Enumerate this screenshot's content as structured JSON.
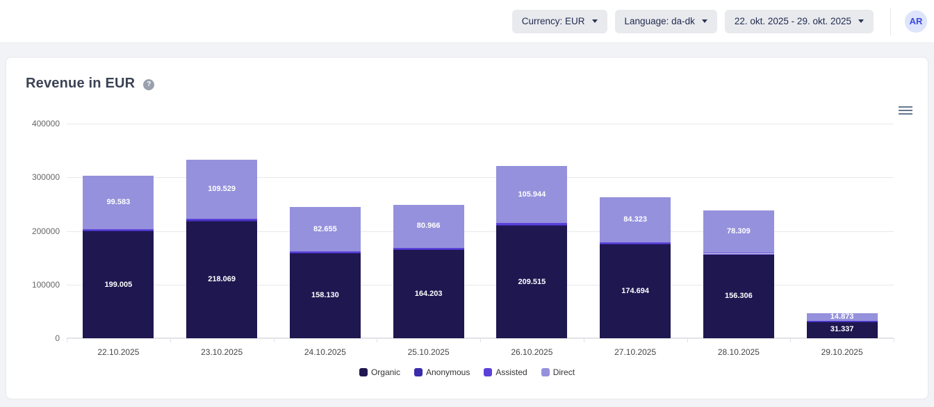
{
  "header": {
    "currency_label": "Currency: EUR",
    "language_label": "Language: da-dk",
    "date_range_label": "22. okt. 2025 - 29. okt. 2025",
    "avatar_initials": "AR"
  },
  "chart_card": {
    "title": "Revenue in EUR",
    "help_icon": "question-mark-icon",
    "menu_icon": "hamburger-icon"
  },
  "chart_data": {
    "type": "bar",
    "stacked": true,
    "title": "Revenue in EUR",
    "categories": [
      "22.10.2025",
      "23.10.2025",
      "24.10.2025",
      "25.10.2025",
      "26.10.2025",
      "27.10.2025",
      "28.10.2025",
      "29.10.2025"
    ],
    "series": [
      {
        "name": "Organic",
        "color": "#1f1750",
        "values": [
          199005,
          218069,
          158130,
          164203,
          209515,
          174694,
          156306,
          31337
        ],
        "labels": [
          "199.005",
          "218.069",
          "158.130",
          "164.203",
          "209.515",
          "174.694",
          "156.306",
          "31.337"
        ]
      },
      {
        "name": "Anonymous",
        "color": "#3a2bab",
        "values": [
          1200,
          1500,
          1000,
          1200,
          1500,
          1200,
          1000,
          300
        ],
        "estimated": true,
        "labels": null
      },
      {
        "name": "Assisted",
        "color": "#5b41d8",
        "values": [
          2800,
          3500,
          2500,
          2800,
          3500,
          2800,
          2500,
          700
        ],
        "estimated": true,
        "labels": null
      },
      {
        "name": "Direct",
        "color": "#9591dc",
        "values": [
          99583,
          109529,
          82655,
          80966,
          105944,
          84323,
          78309,
          14873
        ],
        "labels": [
          "99.583",
          "109.529",
          "82.655",
          "80.966",
          "105.944",
          "84.323",
          "78.309",
          "14.873"
        ]
      }
    ],
    "ylim": [
      0,
      400000
    ],
    "yticks": [
      0,
      100000,
      200000,
      300000,
      400000
    ],
    "ytick_labels": [
      "0",
      "100000",
      "200000",
      "300000",
      "400000"
    ],
    "grid": true,
    "legend_position": "bottom",
    "legend": [
      "Organic",
      "Anonymous",
      "Assisted",
      "Direct"
    ]
  }
}
